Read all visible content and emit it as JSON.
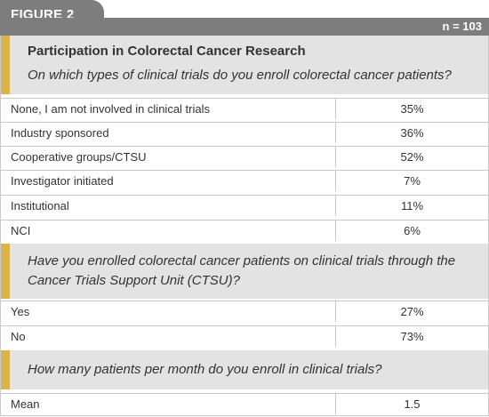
{
  "header": {
    "figure_label": "FIGURE 2",
    "n_label": "n = 103"
  },
  "colors": {
    "header_gray": "#7d7d7e",
    "accent_gold": "#dcb24a",
    "section_bg": "#e3e3e3",
    "rule": "#c9c9c9"
  },
  "section1": {
    "title": "Participation in Colorectal Cancer Research",
    "question": "On which types of clinical trials do you enroll colorectal cancer patients?",
    "rows": [
      {
        "label": "None, I am not involved in clinical trials",
        "value": "35%"
      },
      {
        "label": "Industry sponsored",
        "value": "36%"
      },
      {
        "label": "Cooperative groups/CTSU",
        "value": "52%"
      },
      {
        "label": "Investigator initiated",
        "value": "7%"
      },
      {
        "label": "Institutional",
        "value": "11%"
      },
      {
        "label": "NCI",
        "value": "6%"
      }
    ]
  },
  "section2": {
    "question_line1": "Have you enrolled colorectal cancer patients on clinical trials through the",
    "question_line2": "Cancer Trials Support Unit (CTSU)?",
    "rows": [
      {
        "label": "Yes",
        "value": "27%"
      },
      {
        "label": "No",
        "value": "73%"
      }
    ]
  },
  "section3": {
    "question": "How many patients per month do you enroll in clinical trials?",
    "rows": [
      {
        "label": "Mean",
        "value": "1.5"
      }
    ]
  }
}
